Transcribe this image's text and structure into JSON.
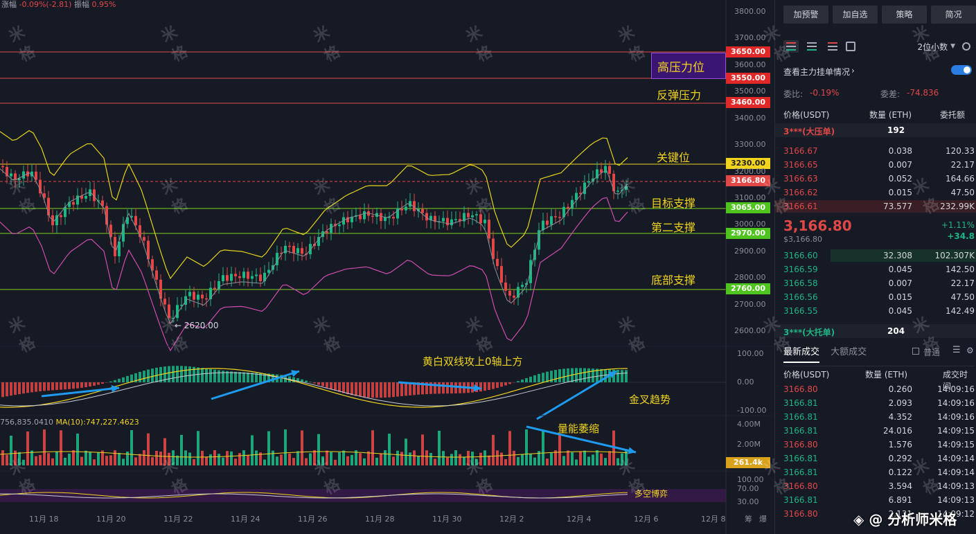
{
  "top_stats": {
    "change_label": "涨幅",
    "change_value": "-0.09%(-2.81)",
    "amp_label": "振幅",
    "amp_value": "0.95%"
  },
  "ma_label": {
    "value_prefix": "756,835.0410",
    "ma10": "MA(10):747,227.4623"
  },
  "watermark_text": "米格",
  "annotations": {
    "high_pressure": "高压力位",
    "rebound_pressure": "反弹压力",
    "key_level": "关键位",
    "target_support": "目标支撑",
    "second_support": "第二支撑",
    "bottom_support": "底部支撑",
    "low_marker": "← 2620.00",
    "macd_note": "黄白双线攻上0轴上方",
    "golden_cross": "金叉趋势",
    "volume_shrink": "量能萎缩",
    "bull_bear": "多空博弈"
  },
  "price_tags": {
    "p3650": "3650.00",
    "p3550": "3550.00",
    "p3460": "3460.00",
    "p3230": "3230.00",
    "current": "3166.80",
    "p3065": "3065.00",
    "p2970": "2970.00",
    "p2760": "2760.00",
    "volume": "261.4k"
  },
  "y_axis": [
    "3800.00",
    "3700.00",
    "3600.00",
    "3500.00",
    "3400.00",
    "3300.00",
    "3200.00",
    "3100.00",
    "3000.00",
    "2900.00",
    "2800.00",
    "2700.00",
    "2600.00"
  ],
  "macd_axis": [
    "100.00",
    "0.00",
    "-100.00"
  ],
  "vol_axis": [
    "4.00M",
    "2.00M"
  ],
  "rsi_axis": [
    "100.00",
    "70.00",
    "30.00"
  ],
  "x_axis": [
    "11月 18",
    "11月 20",
    "11月 22",
    "11月 24",
    "11月 26",
    "11月 28",
    "11月 30",
    "12月 2",
    "12月 4",
    "12月 6",
    "12月 8"
  ],
  "x_axis_extra": {
    "chou": "筹",
    "bao": "爆"
  },
  "colors": {
    "up": "#1fb584",
    "down": "#e04848",
    "accent": "#f2d41e",
    "panel_bg": "#161a25"
  },
  "panel": {
    "buttons": [
      "加预警",
      "加自选",
      "策略",
      "简况"
    ],
    "decimal": "2位小数",
    "main_orders_label": "查看主力挂单情况",
    "ratio_label": "委比:",
    "ratio_value": "-0.19%",
    "diff_label": "委差:",
    "diff_value": "-74.836",
    "col_price": "价格(USDT)",
    "col_qty": "数量 (ETH)",
    "col_total": "委托额",
    "big_ask_label": "3***(大压单)",
    "big_ask_value": "192",
    "asks": [
      {
        "p": "3166.67",
        "q": "0.038",
        "t": "120.33"
      },
      {
        "p": "3166.65",
        "q": "0.007",
        "t": "22.17"
      },
      {
        "p": "3166.63",
        "q": "0.052",
        "t": "164.66"
      },
      {
        "p": "3166.62",
        "q": "0.015",
        "t": "47.50"
      },
      {
        "p": "3166.61",
        "q": "73.577",
        "t": "232.99K"
      }
    ],
    "last_price": "3,166.80",
    "last_price_usd": "$3,166.80",
    "change_pct": "+1.11%",
    "change_abs": "+34.8",
    "bids": [
      {
        "p": "3166.60",
        "q": "32.308",
        "t": "102.307K"
      },
      {
        "p": "3166.59",
        "q": "0.045",
        "t": "142.50"
      },
      {
        "p": "3166.58",
        "q": "0.007",
        "t": "22.17"
      },
      {
        "p": "3166.56",
        "q": "0.015",
        "t": "47.50"
      },
      {
        "p": "3166.55",
        "q": "0.045",
        "t": "142.49"
      }
    ],
    "big_bid_label": "3***(大托单)",
    "big_bid_value": "204",
    "tab_latest": "最新成交",
    "tab_large": "大额成交",
    "normal_label": "普通",
    "trade_col_price": "价格(USDT)",
    "trade_col_qty": "数量 (ETH)",
    "trade_col_time": "成交时间",
    "trades": [
      {
        "p": "3166.80",
        "q": "0.260",
        "t": "14:09:16",
        "s": "down"
      },
      {
        "p": "3166.81",
        "q": "2.093",
        "t": "14:09:16",
        "s": "up"
      },
      {
        "p": "3166.81",
        "q": "4.352",
        "t": "14:09:16",
        "s": "up"
      },
      {
        "p": "3166.81",
        "q": "24.016",
        "t": "14:09:15",
        "s": "up"
      },
      {
        "p": "3166.80",
        "q": "1.576",
        "t": "14:09:15",
        "s": "down"
      },
      {
        "p": "3166.81",
        "q": "0.292",
        "t": "14:09:14",
        "s": "up"
      },
      {
        "p": "3166.81",
        "q": "0.122",
        "t": "14:09:14",
        "s": "up"
      },
      {
        "p": "3166.80",
        "q": "3.594",
        "t": "14:09:13",
        "s": "down"
      },
      {
        "p": "3166.81",
        "q": "6.891",
        "t": "14:09:13",
        "s": "up"
      },
      {
        "p": "3166.80",
        "q": "2.131",
        "t": "14:09:12",
        "s": "down"
      }
    ],
    "brand": "◈ @ 分析师米格"
  }
}
